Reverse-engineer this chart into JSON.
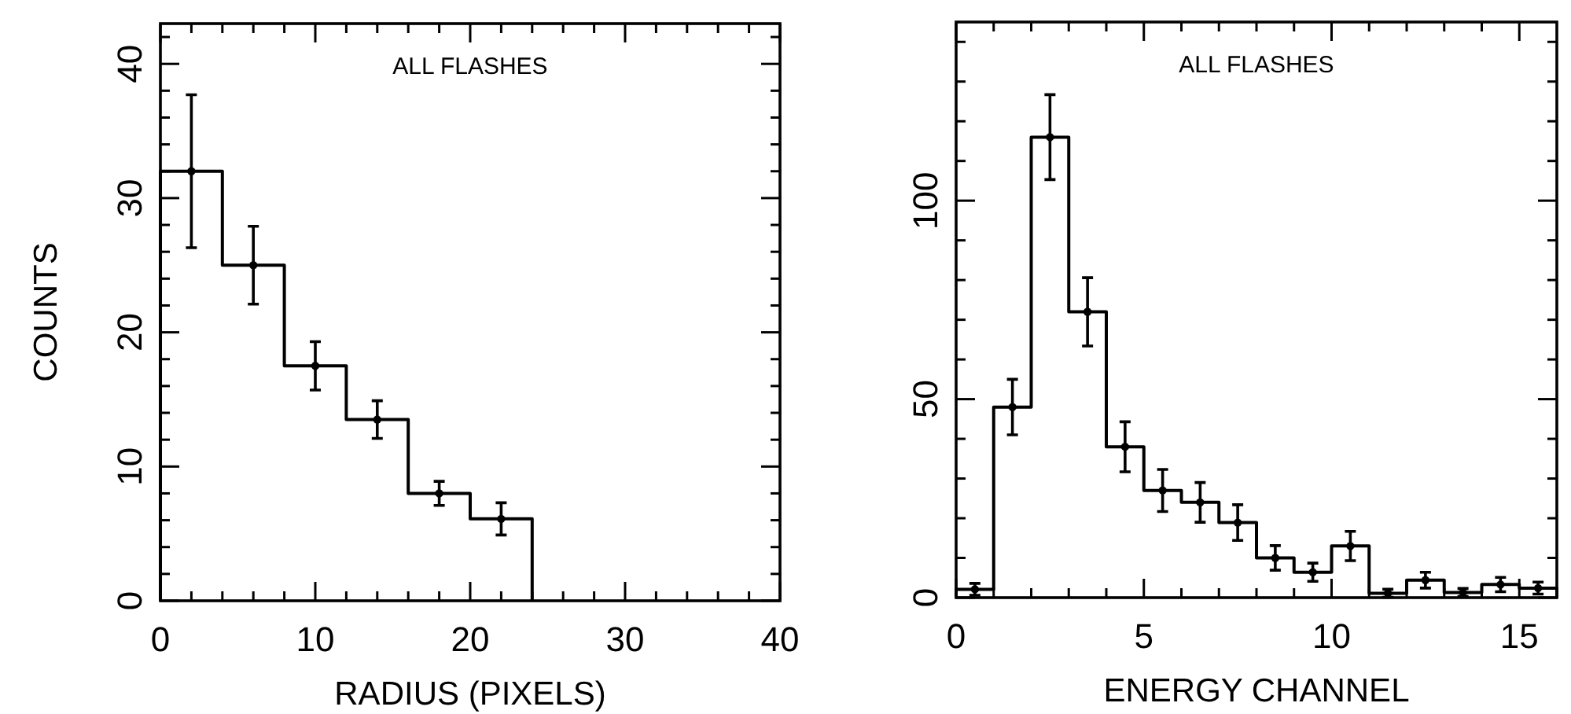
{
  "chart_data": [
    {
      "type": "histogram",
      "title": "ALL FLASHES",
      "xlabel": "RADIUS (PIXELS)",
      "ylabel": "COUNTS",
      "bins": [
        0,
        4,
        8,
        12,
        16,
        20,
        24
      ],
      "values": [
        32,
        25,
        17.5,
        13.5,
        8,
        6.1
      ],
      "color": "#000000",
      "series": [
        {
          "type": "scatter",
          "color": "#000000",
          "x": [
            2,
            6,
            10,
            14,
            18,
            22
          ],
          "values": [
            32,
            25,
            17.5,
            13.5,
            8,
            6.1
          ],
          "errors": [
            5.7,
            2.9,
            1.8,
            1.4,
            0.9,
            1.2
          ]
        }
      ],
      "xlim": [
        0,
        40
      ],
      "xticks": [
        0,
        {
          "value": 2,
          "label": null
        },
        {
          "value": 4,
          "label": null
        },
        {
          "value": 6,
          "label": null
        },
        {
          "value": 8,
          "label": null
        },
        10,
        {
          "value": 12,
          "label": null
        },
        {
          "value": 14,
          "label": null
        },
        {
          "value": 16,
          "label": null
        },
        {
          "value": 18,
          "label": null
        },
        20,
        {
          "value": 22,
          "label": null
        },
        {
          "value": 24,
          "label": null
        },
        {
          "value": 26,
          "label": null
        },
        {
          "value": 28,
          "label": null
        },
        30,
        {
          "value": 32,
          "label": null
        },
        {
          "value": 34,
          "label": null
        },
        {
          "value": 36,
          "label": null
        },
        {
          "value": 38,
          "label": null
        },
        40
      ],
      "ylim": [
        0,
        43
      ],
      "yticks": [
        0,
        {
          "value": 2,
          "label": null
        },
        {
          "value": 4,
          "label": null
        },
        {
          "value": 6,
          "label": null
        },
        {
          "value": 8,
          "label": null
        },
        10,
        {
          "value": 12,
          "label": null
        },
        {
          "value": 14,
          "label": null
        },
        {
          "value": 16,
          "label": null
        },
        {
          "value": 18,
          "label": null
        },
        20,
        {
          "value": 22,
          "label": null
        },
        {
          "value": 24,
          "label": null
        },
        {
          "value": 26,
          "label": null
        },
        {
          "value": 28,
          "label": null
        },
        30,
        {
          "value": 32,
          "label": null
        },
        {
          "value": 34,
          "label": null
        },
        {
          "value": 36,
          "label": null
        },
        {
          "value": 38,
          "label": null
        },
        40,
        {
          "value": 42,
          "label": null
        }
      ]
    },
    {
      "type": "histogram",
      "title": "ALL FLASHES",
      "xlabel": "ENERGY CHANNEL",
      "bins": [
        0,
        1,
        2,
        3,
        4,
        5,
        6,
        7,
        8,
        9,
        10,
        11,
        12,
        13,
        14,
        15,
        16
      ],
      "values": [
        2.1,
        48,
        116,
        72,
        38,
        27,
        24,
        18.9,
        10,
        6.4,
        13,
        1.1,
        4.4,
        1.3,
        3.3,
        2.4
      ],
      "color": "#000000",
      "series": [
        {
          "type": "scatter",
          "color": "#000000",
          "x": [
            0.5,
            1.5,
            2.5,
            3.5,
            4.5,
            5.5,
            6.5,
            7.5,
            8.5,
            9.5,
            10.5,
            11.5,
            12.5,
            13.5,
            14.5,
            15.5
          ],
          "values": [
            2.1,
            48,
            116,
            72,
            38,
            27,
            24,
            18.9,
            10,
            6.4,
            13,
            1.1,
            4.4,
            1.3,
            3.3,
            2.4
          ],
          "errors": [
            1.5,
            7,
            10.7,
            8.6,
            6.3,
            5.3,
            5,
            4.5,
            3.1,
            2.3,
            3.7,
            1,
            2,
            1,
            1.8,
            1.5
          ]
        }
      ],
      "xlim": [
        0,
        16
      ],
      "xticks": [
        0,
        {
          "value": 1,
          "label": null
        },
        {
          "value": 2,
          "label": null
        },
        {
          "value": 3,
          "label": null
        },
        {
          "value": 4,
          "label": null
        },
        5,
        {
          "value": 6,
          "label": null
        },
        {
          "value": 7,
          "label": null
        },
        {
          "value": 8,
          "label": null
        },
        {
          "value": 9,
          "label": null
        },
        10,
        {
          "value": 11,
          "label": null
        },
        {
          "value": 12,
          "label": null
        },
        {
          "value": 13,
          "label": null
        },
        {
          "value": 14,
          "label": null
        },
        15
      ],
      "ylim": [
        0,
        145
      ],
      "yticks": [
        0,
        {
          "value": 10,
          "label": null
        },
        {
          "value": 20,
          "label": null
        },
        {
          "value": 30,
          "label": null
        },
        {
          "value": 40,
          "label": null
        },
        50,
        {
          "value": 60,
          "label": null
        },
        {
          "value": 70,
          "label": null
        },
        {
          "value": 80,
          "label": null
        },
        {
          "value": 90,
          "label": null
        },
        100,
        {
          "value": 110,
          "label": null
        },
        {
          "value": 120,
          "label": null
        },
        {
          "value": 130,
          "label": null
        },
        {
          "value": 140,
          "label": null
        }
      ]
    }
  ]
}
